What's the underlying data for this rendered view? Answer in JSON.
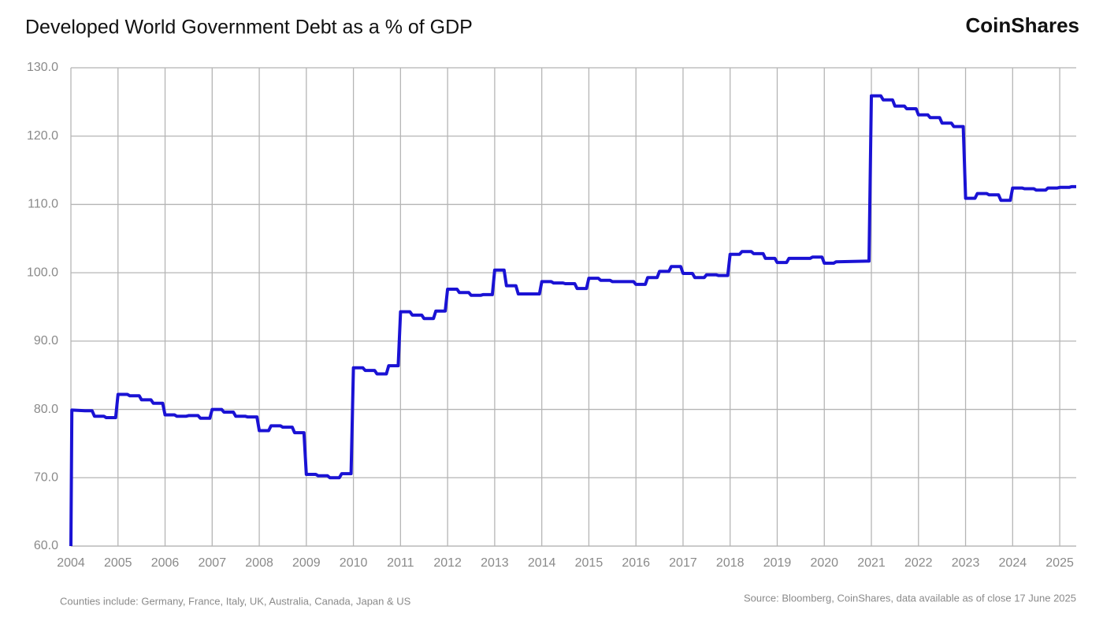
{
  "chart_data": {
    "type": "line",
    "title": "Developed World Government Debt as a % of GDP",
    "brand": "CoinShares",
    "footnote": "Counties include: Germany, France, Italy, UK, Australia, Canada, Japan & US",
    "source": "Source: Bloomberg, CoinShares, data available as of close 17 June 2025",
    "color": "#1a12d4",
    "grid": true,
    "xlim": [
      2004,
      2025.35
    ],
    "xticks": [
      2004,
      2005,
      2006,
      2007,
      2008,
      2009,
      2010,
      2011,
      2012,
      2013,
      2014,
      2015,
      2016,
      2017,
      2018,
      2019,
      2020,
      2021,
      2022,
      2023,
      2024,
      2025
    ],
    "ylim": [
      60,
      130
    ],
    "yticks": [
      {
        "value": 60,
        "label": "60.0"
      },
      {
        "value": 70,
        "label": "70.0"
      },
      {
        "value": 80,
        "label": "80.0"
      },
      {
        "value": 90,
        "label": "90.0"
      },
      {
        "value": 100,
        "label": "100.0"
      },
      {
        "value": 110,
        "label": "110.0"
      },
      {
        "value": 120,
        "label": "120.0"
      },
      {
        "value": 130,
        "label": "130.0"
      }
    ],
    "x": [
      2004.0,
      2004.02,
      2004.3,
      2004.45,
      2004.5,
      2004.7,
      2004.75,
      2004.95,
      2005.0,
      2005.2,
      2005.25,
      2005.45,
      2005.5,
      2005.7,
      2005.75,
      2005.95,
      2006.0,
      2006.2,
      2006.25,
      2006.45,
      2006.5,
      2006.7,
      2006.75,
      2006.95,
      2007.0,
      2007.2,
      2007.25,
      2007.45,
      2007.5,
      2007.7,
      2007.75,
      2007.95,
      2008.0,
      2008.2,
      2008.25,
      2008.45,
      2008.5,
      2008.7,
      2008.75,
      2008.95,
      2009.0,
      2009.2,
      2009.25,
      2009.45,
      2009.5,
      2009.7,
      2009.75,
      2009.95,
      2010.0,
      2010.2,
      2010.25,
      2010.45,
      2010.5,
      2010.7,
      2010.75,
      2010.95,
      2011.0,
      2011.2,
      2011.25,
      2011.45,
      2011.5,
      2011.7,
      2011.75,
      2011.95,
      2012.0,
      2012.2,
      2012.25,
      2012.45,
      2012.5,
      2012.7,
      2012.75,
      2012.95,
      2013.0,
      2013.2,
      2013.25,
      2013.45,
      2013.5,
      2013.7,
      2013.75,
      2013.95,
      2014.0,
      2014.2,
      2014.25,
      2014.45,
      2014.5,
      2014.7,
      2014.75,
      2014.95,
      2015.0,
      2015.2,
      2015.25,
      2015.45,
      2015.5,
      2015.95,
      2016.0,
      2016.2,
      2016.25,
      2016.45,
      2016.5,
      2016.7,
      2016.75,
      2016.95,
      2017.0,
      2017.2,
      2017.25,
      2017.45,
      2017.5,
      2017.7,
      2017.75,
      2017.95,
      2018.0,
      2018.2,
      2018.25,
      2018.45,
      2018.5,
      2018.7,
      2018.75,
      2018.95,
      2019.0,
      2019.2,
      2019.25,
      2019.7,
      2019.75,
      2019.95,
      2020.0,
      2020.2,
      2020.25,
      2020.9,
      2020.95,
      2021.0,
      2021.2,
      2021.25,
      2021.45,
      2021.5,
      2021.7,
      2021.75,
      2021.95,
      2022.0,
      2022.2,
      2022.25,
      2022.45,
      2022.5,
      2022.7,
      2022.75,
      2022.95,
      2023.0,
      2023.2,
      2023.25,
      2023.45,
      2023.5,
      2023.7,
      2023.75,
      2023.95,
      2024.0,
      2024.2,
      2024.25,
      2024.45,
      2024.5,
      2024.7,
      2024.75,
      2024.95,
      2025.0,
      2025.2,
      2025.25,
      2025.35
    ],
    "values": [
      60,
      79.9,
      79.8,
      79.8,
      79.0,
      79.0,
      78.8,
      78.8,
      82.2,
      82.2,
      82.0,
      82.0,
      81.4,
      81.4,
      80.9,
      80.9,
      79.2,
      79.2,
      79.0,
      79.0,
      79.1,
      79.1,
      78.7,
      78.7,
      80.0,
      80.0,
      79.6,
      79.6,
      79.0,
      79.0,
      78.9,
      78.9,
      76.9,
      76.9,
      77.6,
      77.6,
      77.4,
      77.4,
      76.6,
      76.6,
      70.5,
      70.5,
      70.3,
      70.3,
      70.0,
      70.0,
      70.6,
      70.6,
      86.1,
      86.1,
      85.7,
      85.7,
      85.2,
      85.2,
      86.4,
      86.4,
      94.3,
      94.3,
      93.8,
      93.8,
      93.3,
      93.3,
      94.4,
      94.4,
      97.6,
      97.6,
      97.1,
      97.1,
      96.7,
      96.7,
      96.8,
      96.8,
      100.4,
      100.4,
      98.1,
      98.1,
      96.9,
      96.9,
      96.9,
      96.9,
      98.7,
      98.7,
      98.5,
      98.5,
      98.4,
      98.4,
      97.7,
      97.7,
      99.2,
      99.2,
      98.9,
      98.9,
      98.7,
      98.7,
      98.3,
      98.3,
      99.3,
      99.3,
      100.2,
      100.2,
      100.9,
      100.9,
      99.9,
      99.9,
      99.3,
      99.3,
      99.7,
      99.7,
      99.6,
      99.6,
      102.7,
      102.7,
      103.1,
      103.1,
      102.8,
      102.8,
      102.1,
      102.1,
      101.5,
      101.5,
      102.1,
      102.1,
      102.3,
      102.3,
      101.4,
      101.4,
      101.6,
      101.7,
      101.7,
      125.9,
      125.9,
      125.3,
      125.3,
      124.4,
      124.4,
      124.0,
      124.0,
      123.1,
      123.1,
      122.7,
      122.7,
      121.9,
      121.9,
      121.4,
      121.4,
      110.9,
      110.9,
      111.6,
      111.6,
      111.4,
      111.4,
      110.6,
      110.6,
      112.4,
      112.4,
      112.3,
      112.3,
      112.1,
      112.1,
      112.4,
      112.4,
      112.5,
      112.5,
      112.6,
      112.6
    ]
  }
}
